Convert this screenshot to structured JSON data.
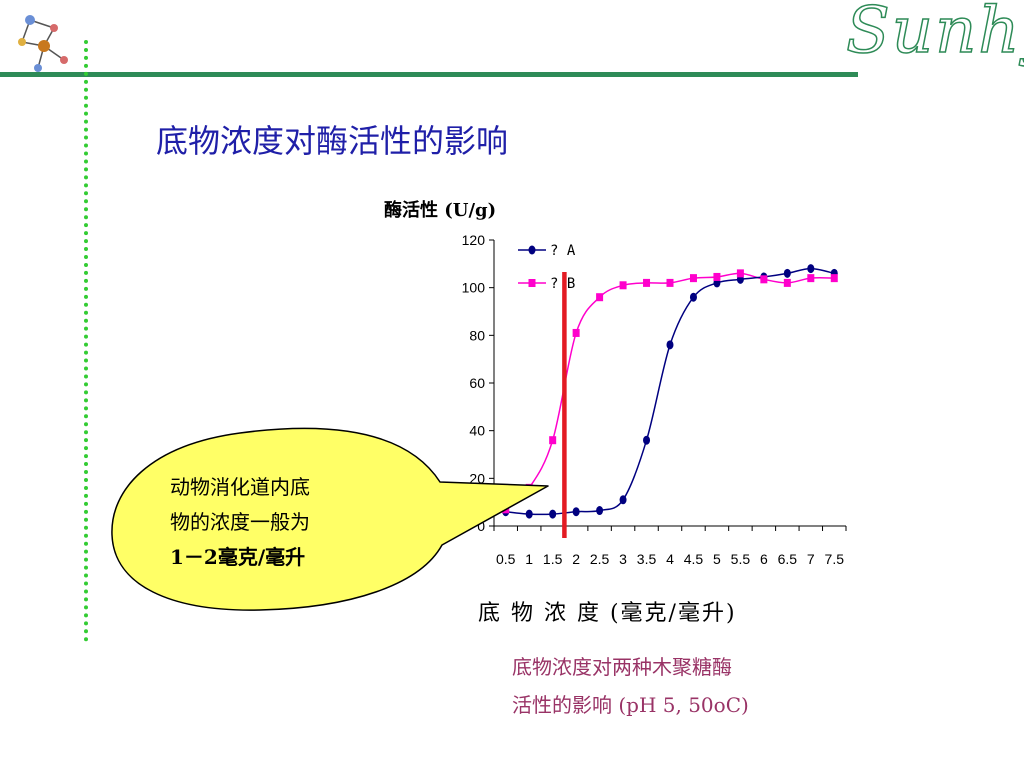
{
  "slide": {
    "title": "底物浓度对酶活性的影响",
    "brand": "Sunhy"
  },
  "callout": {
    "lines": [
      "动物消化道内底",
      "物的浓度一般为",
      "1－2毫克/毫升"
    ]
  },
  "caption": {
    "lines": [
      "底物浓度对两种木聚糖酶",
      "活性的影响 (pH 5, 50oC)"
    ]
  },
  "colors": {
    "title": "#1f1fa8",
    "rule": "#2e8b57",
    "dotted": "#33cc33",
    "series_a": "#000080",
    "series_b": "#ff00cc",
    "marker_line": "#e31b23",
    "callout_fill": "#ffff66",
    "caption": "#993366"
  },
  "chart_data": {
    "type": "line",
    "ylabel": "酶活性 (U/g)",
    "xlabel": "底 物 浓 度 (毫克/毫升)",
    "categories": [
      "0.5",
      "1",
      "1.5",
      "2",
      "2.5",
      "3",
      "3.5",
      "4",
      "4.5",
      "5",
      "5.5",
      "6",
      "6.5",
      "7",
      "7.5"
    ],
    "ylim": [
      0,
      120
    ],
    "yticks": [
      0,
      20,
      40,
      60,
      80,
      100,
      120
    ],
    "legend_position": "top-left",
    "series": [
      {
        "name": "? A",
        "marker": "circle",
        "values": [
          6,
          5,
          5,
          6,
          6.5,
          11,
          36,
          76,
          96,
          102,
          103.5,
          104.5,
          106,
          108,
          106
        ]
      },
      {
        "name": "? B",
        "marker": "square",
        "values": [
          7,
          16,
          36,
          81,
          96,
          101,
          102,
          102,
          104,
          104.5,
          106,
          103.5,
          102,
          104,
          104
        ]
      }
    ],
    "vertical_marker_x": 1.75,
    "grid": false
  }
}
